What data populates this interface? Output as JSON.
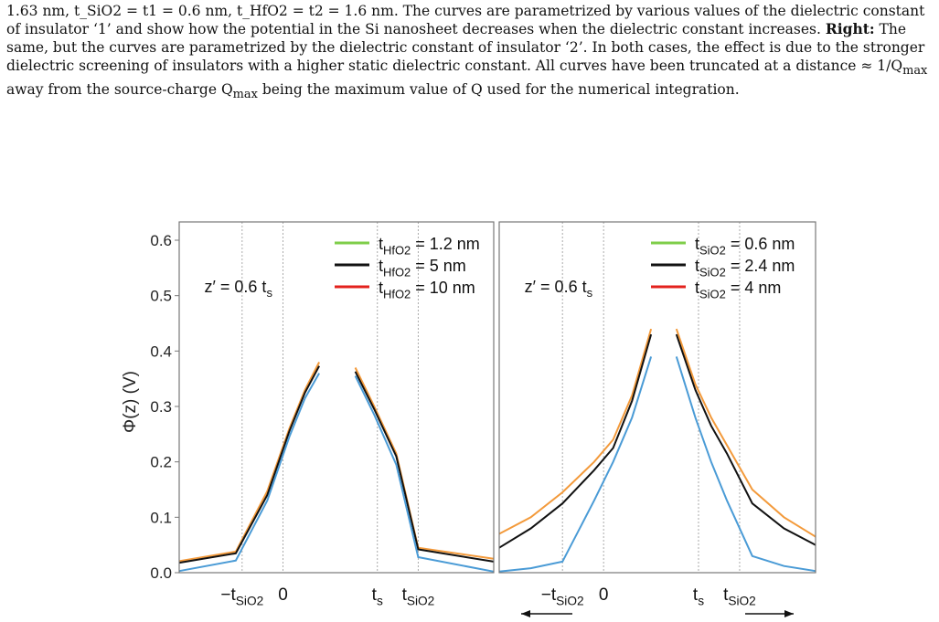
{
  "caption": {
    "line1": "1.63 nm, t_SiO2 = t1 = 0.6 nm, t_HfO2 = t2 = 1.6 nm. The curves are parametrized by various values of the dielectric constant",
    "line2": "of insulator ‘1’ and show how the potential in the Si nanosheet decreases when the dielectric constant increases.",
    "right_label": "Right:",
    "line2b": "The",
    "line3": "same, but the curves are parametrized by the dielectric constant of insulator ‘2’. In both cases, the effect is due to the stronger",
    "line4": "dielectric screening of insulators with a higher static dielectric constant. All curves have been truncated at a distance ≈ 1/Q",
    "line4_sub": "max",
    "line5": "away from the source-charge Q",
    "line5_sub": "max",
    "line5b": "being the maximum value of Q used for the numerical integration."
  },
  "colors": {
    "green": "#7fce4a",
    "black": "#111111",
    "red": "#e3211c",
    "orange": "#f39a3b",
    "blue": "#4a9bd6"
  },
  "chart_data": [
    {
      "type": "line",
      "ylabel": "Φ(z) (V)",
      "yticks": [
        "0.0",
        "0.1",
        "0.2",
        "0.3",
        "0.4",
        "0.5",
        "0.6"
      ],
      "xticks": [
        "−tSiO2",
        "0",
        "ts",
        "tSiO2"
      ],
      "annotation": "z′ = 0.6 ts",
      "ylim": [
        0,
        0.6
      ],
      "legend_placement": "top-right",
      "legend": [
        {
          "base": "t",
          "sub": "HfO2",
          "value": " = 1.2 nm",
          "color": "green"
        },
        {
          "base": "t",
          "sub": "HfO2",
          "value": " = 5 nm",
          "color": "black"
        },
        {
          "base": "t",
          "sub": "HfO2",
          "value": " = 10 nm",
          "color": "red"
        }
      ],
      "series": [
        {
          "color": "orange",
          "points": [
            [
              0.0,
              0.021
            ],
            [
              0.18,
              0.038
            ],
            [
              0.28,
              0.147
            ],
            [
              0.35,
              0.26
            ],
            [
              0.4,
              0.33
            ],
            [
              0.445,
              0.38
            ],
            [
              null,
              null
            ],
            [
              0.56,
              0.37
            ],
            [
              0.62,
              0.3
            ],
            [
              0.69,
              0.215
            ],
            [
              0.76,
              0.045
            ],
            [
              1.0,
              0.025
            ]
          ]
        },
        {
          "color": "black",
          "points": [
            [
              0.0,
              0.018
            ],
            [
              0.18,
              0.035
            ],
            [
              0.28,
              0.14
            ],
            [
              0.35,
              0.255
            ],
            [
              0.4,
              0.325
            ],
            [
              0.445,
              0.373
            ],
            [
              null,
              null
            ],
            [
              0.56,
              0.363
            ],
            [
              0.62,
              0.295
            ],
            [
              0.69,
              0.21
            ],
            [
              0.76,
              0.042
            ],
            [
              1.0,
              0.02
            ]
          ]
        },
        {
          "color": "blue",
          "points": [
            [
              0.0,
              0.003
            ],
            [
              0.18,
              0.022
            ],
            [
              0.28,
              0.13
            ],
            [
              0.35,
              0.245
            ],
            [
              0.4,
              0.315
            ],
            [
              0.445,
              0.36
            ],
            [
              null,
              null
            ],
            [
              0.56,
              0.355
            ],
            [
              0.62,
              0.285
            ],
            [
              0.69,
              0.195
            ],
            [
              0.76,
              0.028
            ],
            [
              1.0,
              0.002
            ]
          ]
        }
      ]
    },
    {
      "type": "line",
      "xticks": [
        "−tSiO2",
        "0",
        "ts",
        "tSiO2"
      ],
      "annotation": "z′ = 0.6 ts",
      "ylim": [
        0,
        0.6
      ],
      "legend_placement": "top-right",
      "legend": [
        {
          "base": "t",
          "sub": "SiO2",
          "value": " = 0.6 nm",
          "color": "green"
        },
        {
          "base": "t",
          "sub": "SiO2",
          "value": " = 2.4 nm",
          "color": "black"
        },
        {
          "base": "t",
          "sub": "SiO2",
          "value": " = 4 nm",
          "color": "red"
        }
      ],
      "series": [
        {
          "color": "orange",
          "points": [
            [
              0.0,
              0.07
            ],
            [
              0.1,
              0.1
            ],
            [
              0.2,
              0.145
            ],
            [
              0.3,
              0.2
            ],
            [
              0.36,
              0.24
            ],
            [
              0.42,
              0.32
            ],
            [
              0.48,
              0.44
            ],
            [
              null,
              null
            ],
            [
              0.56,
              0.44
            ],
            [
              0.62,
              0.34
            ],
            [
              0.67,
              0.28
            ],
            [
              0.72,
              0.23
            ],
            [
              0.8,
              0.15
            ],
            [
              0.9,
              0.1
            ],
            [
              1.0,
              0.065
            ]
          ]
        },
        {
          "color": "black",
          "points": [
            [
              0.0,
              0.045
            ],
            [
              0.1,
              0.08
            ],
            [
              0.2,
              0.125
            ],
            [
              0.3,
              0.185
            ],
            [
              0.36,
              0.225
            ],
            [
              0.42,
              0.31
            ],
            [
              0.48,
              0.43
            ],
            [
              null,
              null
            ],
            [
              0.56,
              0.43
            ],
            [
              0.62,
              0.33
            ],
            [
              0.67,
              0.265
            ],
            [
              0.72,
              0.215
            ],
            [
              0.8,
              0.125
            ],
            [
              0.9,
              0.08
            ],
            [
              1.0,
              0.05
            ]
          ]
        },
        {
          "color": "blue",
          "points": [
            [
              0.0,
              0.002
            ],
            [
              0.1,
              0.008
            ],
            [
              0.2,
              0.02
            ],
            [
              0.3,
              0.13
            ],
            [
              0.36,
              0.2
            ],
            [
              0.42,
              0.28
            ],
            [
              0.48,
              0.39
            ],
            [
              null,
              null
            ],
            [
              0.56,
              0.39
            ],
            [
              0.62,
              0.28
            ],
            [
              0.67,
              0.2
            ],
            [
              0.72,
              0.13
            ],
            [
              0.8,
              0.03
            ],
            [
              0.9,
              0.012
            ],
            [
              1.0,
              0.003
            ]
          ]
        }
      ]
    }
  ]
}
